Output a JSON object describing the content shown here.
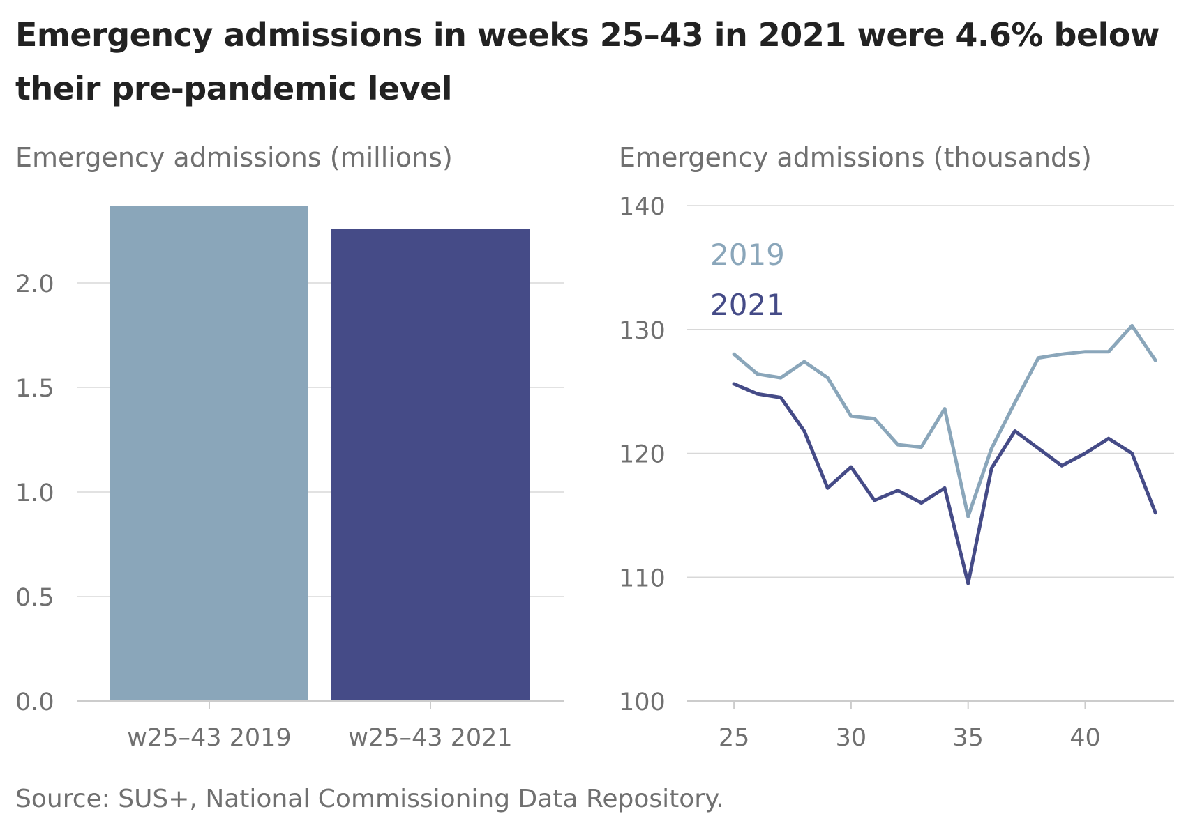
{
  "title": "Emergency admissions in weeks 25–43 in 2021 were 4.6% below their pre-pandemic level",
  "source": "Source: SUS+, National Commissioning Data Repository.",
  "colors": {
    "series_2019": "#8aa6ba",
    "series_2021": "#454b87",
    "grid": "#d8d8d8",
    "axis_text": "#707070",
    "title_text": "#222222"
  },
  "chart_data": [
    {
      "type": "bar",
      "ylabel": "Emergency admissions (millions)",
      "categories": [
        "w25–43 2019",
        "w25–43 2021"
      ],
      "values": [
        2.37,
        2.26
      ],
      "ylim": [
        0,
        2.37
      ],
      "yticks": [
        0.0,
        0.5,
        1.0,
        1.5,
        2.0
      ],
      "ytick_labels": [
        "0.0",
        "0.5",
        "1.0",
        "1.5",
        "2.0"
      ],
      "grid": true
    },
    {
      "type": "line",
      "ylabel": "Emergency admissions (thousands)",
      "x": [
        25,
        26,
        27,
        28,
        29,
        30,
        31,
        32,
        33,
        34,
        35,
        36,
        37,
        38,
        39,
        40,
        41,
        42,
        43
      ],
      "series": [
        {
          "name": "2019",
          "values": [
            128.0,
            126.4,
            126.1,
            127.4,
            126.1,
            123.0,
            122.8,
            120.7,
            120.5,
            123.6,
            114.9,
            120.4,
            124.1,
            127.7,
            128.0,
            128.2,
            128.2,
            130.3,
            127.5
          ]
        },
        {
          "name": "2021",
          "values": [
            125.6,
            124.8,
            124.5,
            121.8,
            117.2,
            118.9,
            116.2,
            117.0,
            116.0,
            117.2,
            109.5,
            118.8,
            121.8,
            120.4,
            119.0,
            120.0,
            121.2,
            120.0,
            115.2
          ]
        }
      ],
      "ylim": [
        100,
        140
      ],
      "yticks": [
        100,
        110,
        120,
        130,
        140
      ],
      "xticks": [
        25,
        30,
        35,
        40
      ],
      "grid": true,
      "legend_placement": "top-left"
    }
  ]
}
